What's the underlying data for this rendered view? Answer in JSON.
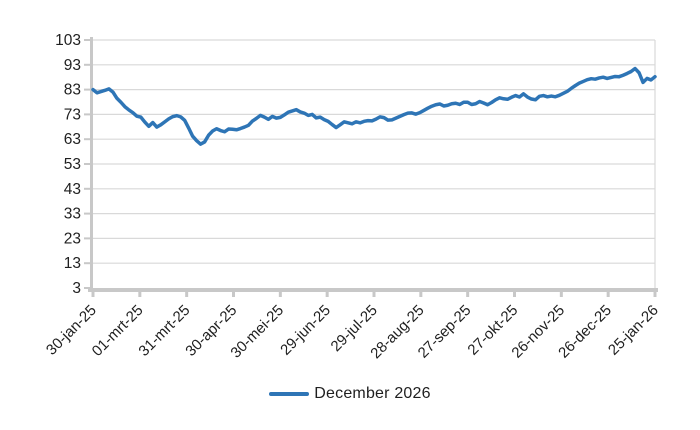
{
  "colors": {
    "line": "#2E75B6",
    "grid": "#D9D9D9",
    "axis": "#C8C8C8",
    "text": "#1f1f1f",
    "background": "#FFFFFF"
  },
  "legend": {
    "label": "December 2026"
  },
  "chart_data": {
    "type": "line",
    "title": "",
    "xlabel": "",
    "ylabel": "",
    "ylim": [
      3,
      103
    ],
    "y_ticks": [
      3,
      13,
      23,
      33,
      43,
      53,
      63,
      73,
      83,
      93,
      103
    ],
    "x_tick_labels": [
      "30-jan-25",
      "01-mrt-25",
      "31-mrt-25",
      "30-apr-25",
      "30-mei-25",
      "29-jun-25",
      "29-jul-25",
      "28-aug-25",
      "27-sep-25",
      "27-okt-25",
      "26-nov-25",
      "26-dec-25",
      "25-jan-26"
    ],
    "grid": "horizontal",
    "legend_position": "bottom",
    "series": [
      {
        "name": "December 2026",
        "color": "#2E75B6",
        "values": [
          83.0,
          81.7,
          82.2,
          82.7,
          83.3,
          82.0,
          79.5,
          77.9,
          76.1,
          74.8,
          73.7,
          72.3,
          71.9,
          69.9,
          68.2,
          69.7,
          67.9,
          68.8,
          70.0,
          71.2,
          72.1,
          72.5,
          72.0,
          70.6,
          67.5,
          64.2,
          62.4,
          61.0,
          61.9,
          64.6,
          66.3,
          67.2,
          66.5,
          66.0,
          67.1,
          67.0,
          66.8,
          67.3,
          67.9,
          68.6,
          70.3,
          71.4,
          72.6,
          71.9,
          71.0,
          72.2,
          71.5,
          71.8,
          72.8,
          73.9,
          74.4,
          74.9,
          74.0,
          73.5,
          72.6,
          73.0,
          71.6,
          71.9,
          70.9,
          70.2,
          68.9,
          67.7,
          68.8,
          70.0,
          69.6,
          69.2,
          70.0,
          69.6,
          70.2,
          70.5,
          70.4,
          71.1,
          72.0,
          71.7,
          70.7,
          70.8,
          71.5,
          72.2,
          72.9,
          73.5,
          73.6,
          73.1,
          73.7,
          74.6,
          75.5,
          76.3,
          76.9,
          77.2,
          76.4,
          76.7,
          77.3,
          77.5,
          77.0,
          77.9,
          77.9,
          77.0,
          77.3,
          78.2,
          77.6,
          76.9,
          77.8,
          78.9,
          79.7,
          79.3,
          79.1,
          79.9,
          80.6,
          80.0,
          81.3,
          80.0,
          79.2,
          78.9,
          80.3,
          80.6,
          80.1,
          80.4,
          80.1,
          80.7,
          81.5,
          82.3,
          83.5,
          84.6,
          85.6,
          86.3,
          87.0,
          87.4,
          87.2,
          87.7,
          88.0,
          87.5,
          87.9,
          88.3,
          88.2,
          88.8,
          89.5,
          90.3,
          91.5,
          89.8,
          85.9,
          87.5,
          86.9,
          88.2
        ]
      }
    ]
  }
}
